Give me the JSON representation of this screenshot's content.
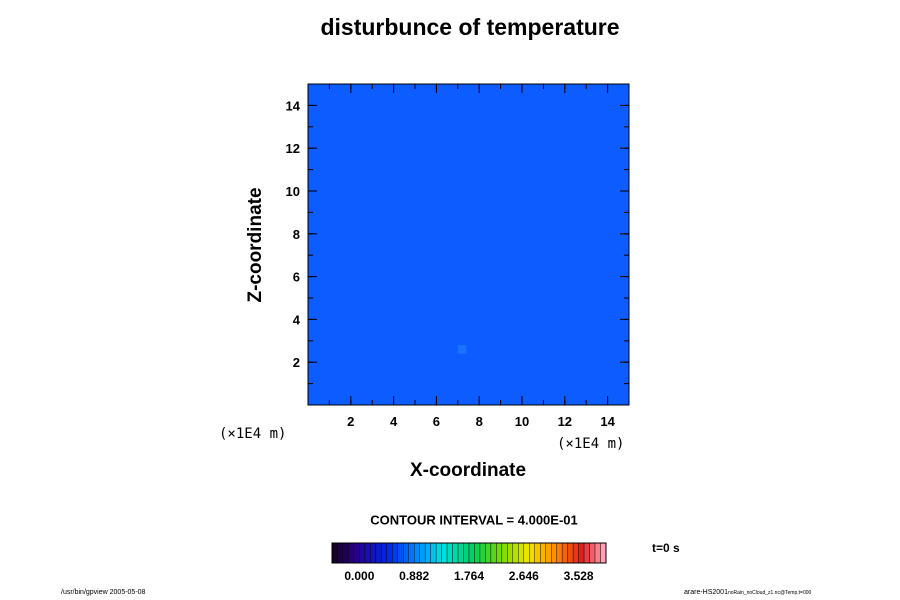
{
  "chart_data": {
    "type": "heatmap",
    "title": "disturbunce of temperature",
    "xlabel": "X-coordinate",
    "ylabel": "Z-coordinate",
    "x_unit": "(×1E4 m)",
    "y_unit": "(×1E4 m)",
    "xlim": [
      0,
      15
    ],
    "ylim": [
      0,
      15
    ],
    "xticks": [
      2,
      4,
      6,
      8,
      10,
      12,
      14
    ],
    "yticks": [
      2,
      4,
      6,
      8,
      10,
      12,
      14
    ],
    "field": {
      "background_value": 0.0,
      "background_color": "#0c5cff",
      "anomaly": {
        "x_range": [
          7.0,
          7.4
        ],
        "z_range": [
          2.4,
          2.8
        ],
        "value": 0.2,
        "color": "#1a72ff"
      }
    },
    "contour_interval_text": "CONTOUR INTERVAL = 4.000E-01",
    "colorbar": {
      "min": -0.441,
      "max": 3.969,
      "tick_values": [
        0.0,
        0.882,
        1.764,
        2.646,
        3.528
      ],
      "tick_labels": [
        "0.000",
        "0.882",
        "1.764",
        "2.646",
        "3.528"
      ],
      "colormap": "rainbow"
    },
    "time_label": "t=0 s"
  },
  "footer": {
    "left": "/usr/bin/gpview 2005-05-08",
    "right_main": "arare-HS2001",
    "right_sub": "noRain_noCloud_z1.nc@Temp,t=000"
  }
}
